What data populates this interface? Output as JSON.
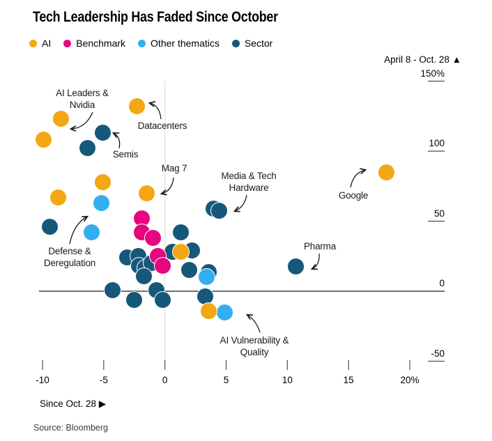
{
  "header": {
    "title": "Tech Leadership Has Faded Since October"
  },
  "legend": {
    "items": [
      {
        "label": "AI",
        "color": "#F3A712"
      },
      {
        "label": "Benchmark",
        "color": "#E6077E"
      },
      {
        "label": "Other thematics",
        "color": "#33AEEF"
      },
      {
        "label": "Sector",
        "color": "#16587A"
      }
    ]
  },
  "chart_data": {
    "type": "scatter",
    "title": "Tech Leadership Has Faded Since October",
    "xlabel": "Since Oct. 28 ▶",
    "ylabel": "April 8 - Oct. 28 ▲",
    "xlim": [
      -10,
      20
    ],
    "ylim": [
      -50,
      150
    ],
    "x_ticks": {
      "values": [
        -10,
        -5,
        0,
        5,
        10,
        15,
        20
      ],
      "labels": [
        "-10",
        "-5",
        "0",
        "5",
        "10",
        "15",
        "20%"
      ]
    },
    "y_ticks": {
      "values": [
        150,
        100,
        50,
        0,
        -50
      ],
      "labels": [
        "150%",
        "100",
        "50",
        "0",
        "-50"
      ]
    },
    "grid": {
      "vertical_zero_line": true,
      "horizontal_zero_line": true
    },
    "series": [
      {
        "name": "Sector",
        "color": "#16587A",
        "points": [
          [
            -5.1,
            113
          ],
          [
            -6.3,
            102
          ],
          [
            -9.4,
            46
          ],
          [
            1.3,
            42
          ],
          [
            4.0,
            59
          ],
          [
            4.45,
            57.5
          ],
          [
            0.6,
            28
          ],
          [
            2.2,
            29
          ],
          [
            -3.1,
            24
          ],
          [
            -2.2,
            25
          ],
          [
            -2.1,
            18
          ],
          [
            -1.6,
            16.5
          ],
          [
            -1.1,
            20
          ],
          [
            -1.7,
            10.5
          ],
          [
            2.0,
            15
          ],
          [
            3.6,
            13.5
          ],
          [
            -4.3,
            0.5
          ],
          [
            -2.5,
            -6
          ],
          [
            -0.7,
            0.5
          ],
          [
            -0.2,
            -6
          ],
          [
            3.3,
            -3.5
          ],
          [
            10.7,
            17.5
          ]
        ]
      },
      {
        "name": "Benchmark",
        "color": "#E6077E",
        "points": [
          [
            -1.9,
            52
          ],
          [
            -1.9,
            42
          ],
          [
            -1.0,
            38
          ],
          [
            -0.6,
            25
          ],
          [
            -0.2,
            18
          ]
        ]
      },
      {
        "name": "Other thematics",
        "color": "#33AEEF",
        "points": [
          [
            -5.2,
            63
          ],
          [
            -6.0,
            42
          ],
          [
            3.4,
            10
          ],
          [
            4.9,
            -15
          ]
        ]
      },
      {
        "name": "AI",
        "color": "#F3A712",
        "points": [
          [
            -8.5,
            123
          ],
          [
            -9.9,
            108
          ],
          [
            -2.3,
            132
          ],
          [
            -5.1,
            78
          ],
          [
            -8.7,
            67
          ],
          [
            -1.5,
            70
          ],
          [
            1.3,
            28
          ],
          [
            3.6,
            -14
          ],
          [
            18.1,
            85
          ]
        ]
      }
    ],
    "annotations": [
      {
        "id": "ai-leaders-nvidia",
        "lines": [
          "AI Leaders &",
          "Nvidia"
        ],
        "target": [
          -8.5,
          123
        ]
      },
      {
        "id": "datacenters",
        "lines": [
          "Datacenters"
        ],
        "target": [
          -2.3,
          132
        ]
      },
      {
        "id": "semis",
        "lines": [
          "Semis"
        ],
        "target": [
          -5.1,
          113
        ]
      },
      {
        "id": "mag-7",
        "lines": [
          "Mag 7"
        ],
        "target": [
          -1.5,
          70
        ]
      },
      {
        "id": "media-tech-hardware",
        "lines": [
          "Media & Tech",
          "Hardware"
        ],
        "target": [
          4.0,
          59
        ]
      },
      {
        "id": "google",
        "lines": [
          "Google"
        ],
        "target": [
          18.1,
          85
        ]
      },
      {
        "id": "defense-deregulation",
        "lines": [
          "Defense &",
          "Deregulation"
        ],
        "target": [
          -5.2,
          63
        ]
      },
      {
        "id": "pharma",
        "lines": [
          "Pharma"
        ],
        "target": [
          10.7,
          17.5
        ]
      },
      {
        "id": "ai-vulnerability-quality",
        "lines": [
          "AI Vulnerability &",
          "Quality"
        ],
        "target": [
          4.9,
          -15
        ]
      }
    ]
  },
  "footer": {
    "source": "Source: Bloomberg"
  }
}
